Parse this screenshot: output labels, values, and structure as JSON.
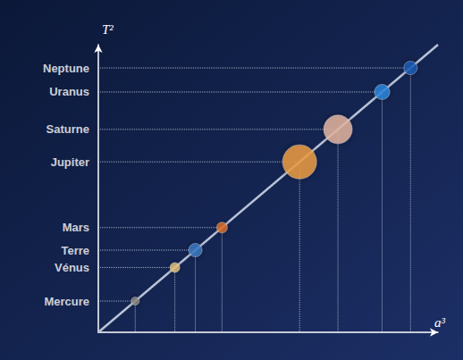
{
  "chart_data": {
    "type": "scatter",
    "x_label": "a³",
    "y_label": "T²",
    "log": true,
    "grid": false,
    "tick_labels": "y",
    "xlim": [
      0.01,
      100000
    ],
    "ylim": [
      0.01,
      100000
    ],
    "yticks": [
      {
        "value": 0.0576,
        "label": "Mercure"
      },
      {
        "value": 0.378,
        "label": "Vénus"
      },
      {
        "value": 1,
        "label": "Terre"
      },
      {
        "value": 3.54,
        "label": "Mars"
      },
      {
        "value": 140.7,
        "label": "Jupiter"
      },
      {
        "value": 867.6,
        "label": "Saturne"
      },
      {
        "value": 7058,
        "label": "Uranus"
      },
      {
        "value": 27159,
        "label": "Neptune"
      }
    ],
    "series": [
      {
        "type": "scatter",
        "marker": "circle",
        "x": [
          0.0576,
          0.378,
          1,
          3.54,
          140.7,
          867.6,
          7058,
          27159
        ],
        "values": [
          0.0576,
          0.378,
          1,
          3.54,
          140.7,
          867.6,
          7058,
          27159
        ],
        "colors": [
          "#8c8a80",
          "#e9c27a",
          "#3b7cc4",
          "#e0702a",
          "#f2a043",
          "#e8b9a4",
          "#2d8ae2",
          "#1d5cb6"
        ]
      },
      {
        "type": "line",
        "line_style": "solid",
        "color": "#b9c3d6",
        "x": [
          0.01,
          100000
        ],
        "values": [
          0.01,
          100000
        ]
      }
    ]
  }
}
